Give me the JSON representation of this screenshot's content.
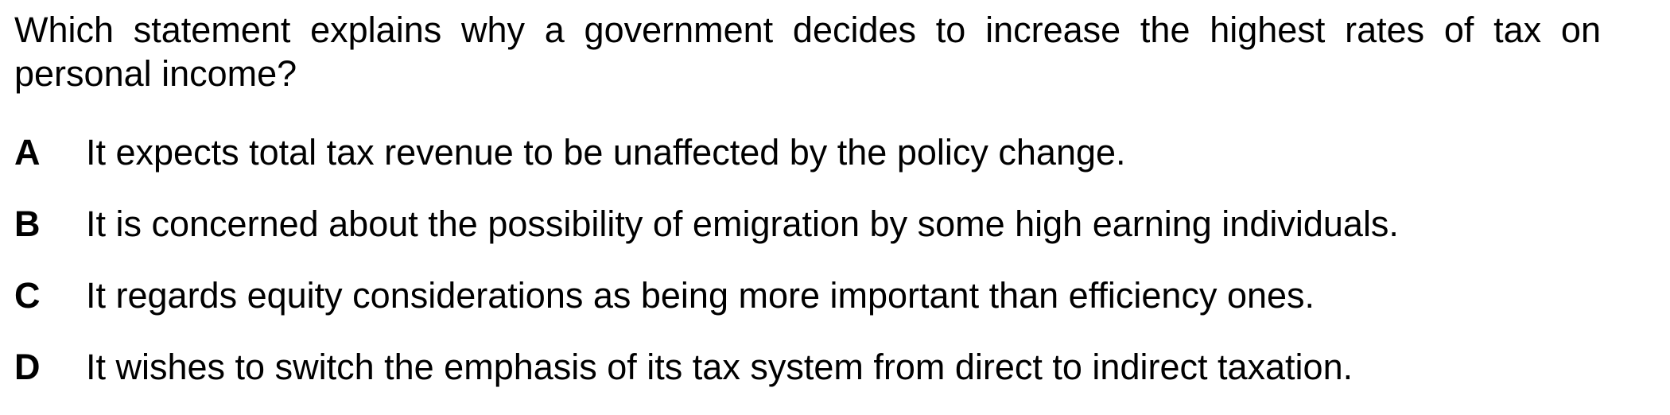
{
  "question": {
    "text": "Which statement explains why a government decides to increase the highest rates of tax on personal income?"
  },
  "options": [
    {
      "letter": "A",
      "text": "It expects total tax revenue to be unaffected by the policy change."
    },
    {
      "letter": "B",
      "text": "It is concerned about the possibility of emigration by some high earning individuals."
    },
    {
      "letter": "C",
      "text": "It regards equity considerations as being more important than efficiency ones."
    },
    {
      "letter": "D",
      "text": "It wishes to switch the emphasis of its tax system from direct to indirect taxation."
    }
  ]
}
